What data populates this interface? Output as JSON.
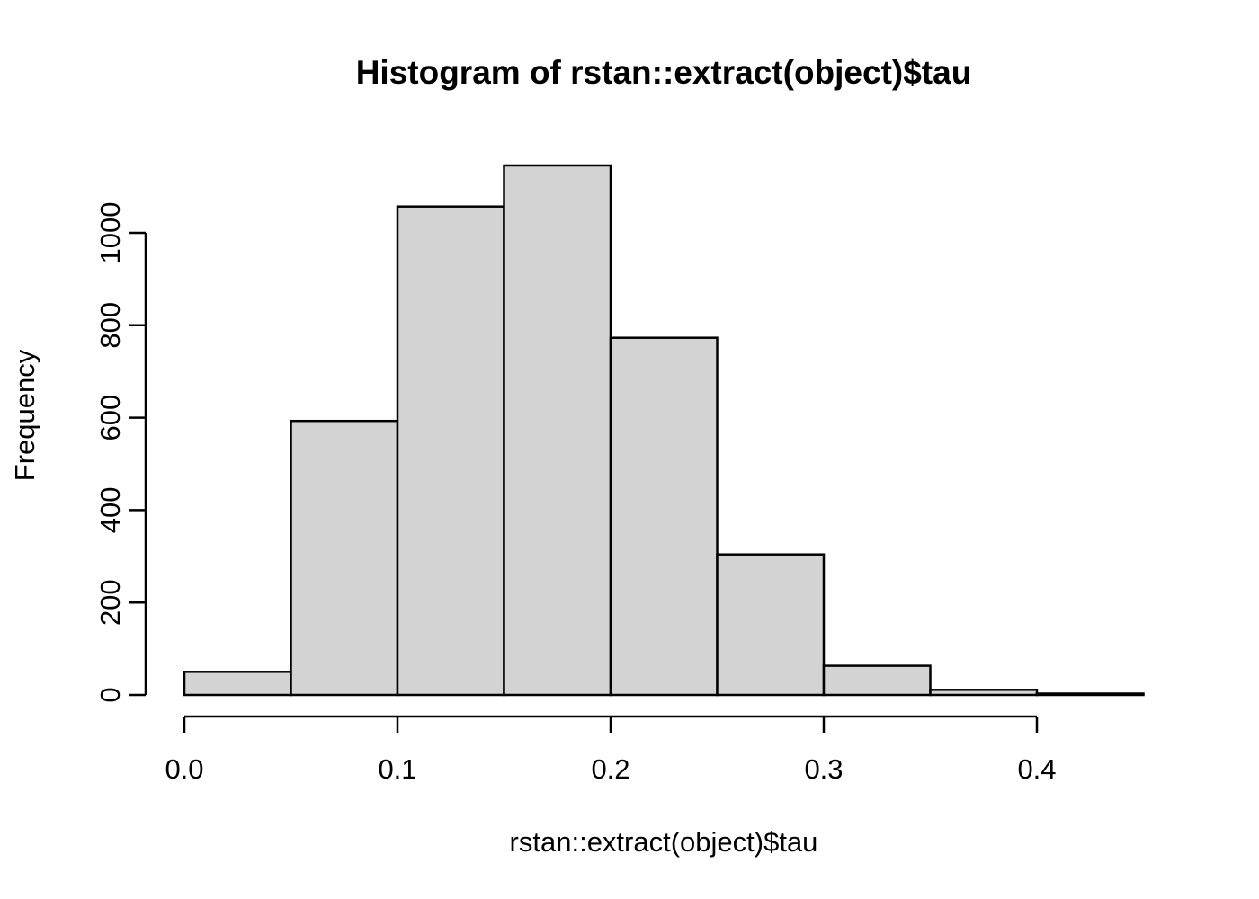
{
  "chart_data": {
    "type": "bar",
    "subtype": "histogram",
    "title": "Histogram of rstan::extract(object)$tau",
    "xlabel": "rstan::extract(object)$tau",
    "ylabel": "Frequency",
    "bin_width": 0.05,
    "bin_starts": [
      0.0,
      0.05,
      0.1,
      0.15,
      0.2,
      0.25,
      0.3,
      0.35,
      0.4
    ],
    "values": [
      50,
      593,
      1057,
      1146,
      773,
      304,
      63,
      11,
      3
    ],
    "x_ticks": {
      "values": [
        0.0,
        0.1,
        0.2,
        0.3,
        0.4
      ],
      "labels": [
        "0.0",
        "0.1",
        "0.2",
        "0.3",
        "0.4"
      ]
    },
    "y_ticks": {
      "values": [
        0,
        200,
        400,
        600,
        800,
        1000
      ],
      "labels": [
        "0",
        "200",
        "400",
        "600",
        "800",
        "1000"
      ]
    },
    "xlim": [
      0.0,
      0.45
    ],
    "ylim": [
      0,
      1150
    ],
    "grid": false,
    "legend": "none",
    "colors": {
      "bar_fill": "#D3D3D3",
      "bar_border": "#000000",
      "axis": "#000000",
      "text": "#000000",
      "background": "#FFFFFF"
    }
  }
}
